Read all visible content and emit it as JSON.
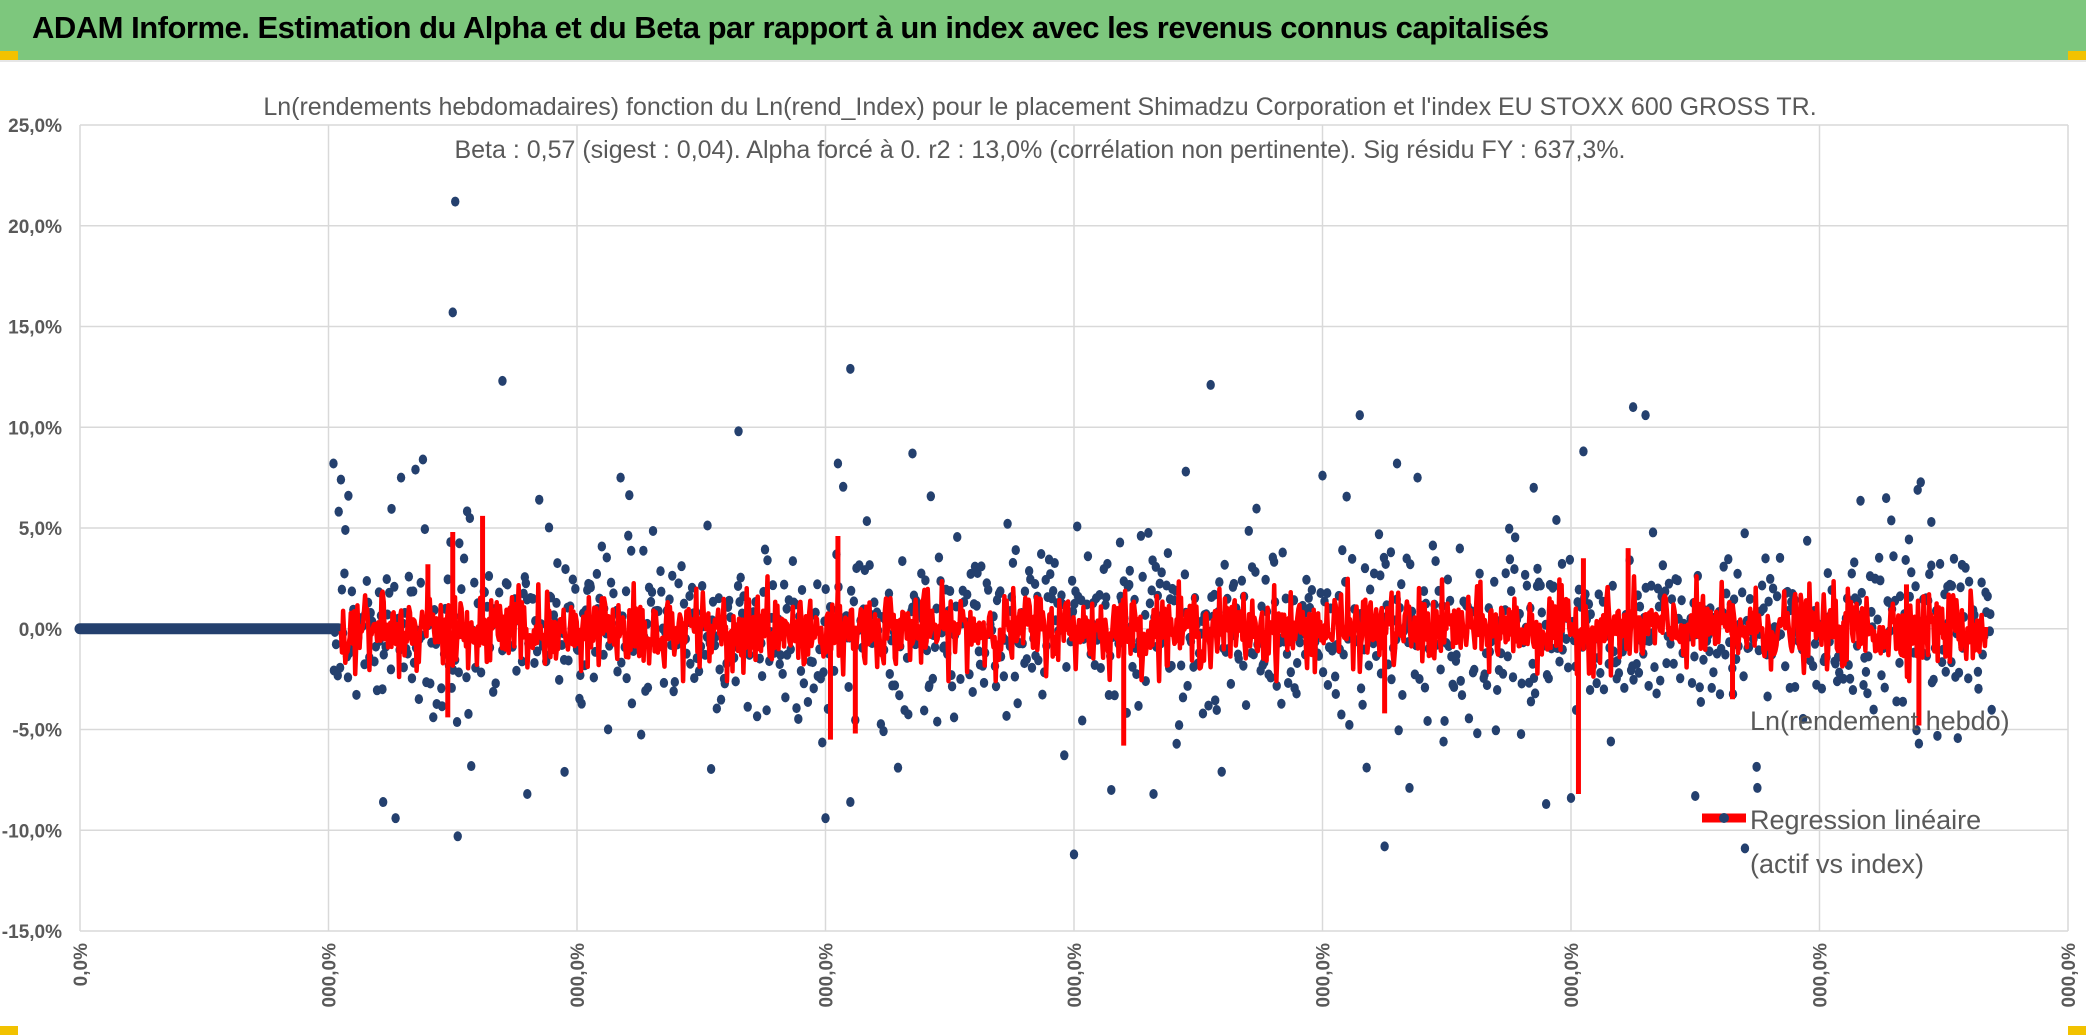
{
  "header": {
    "title": "ADAM Informe. Estimation du Alpha et du Beta par rapport à un index avec les revenus connus capitalisés",
    "accent_color": "#7dc77d",
    "corner_color": "#f2c200"
  },
  "chart_data": {
    "type": "scatter",
    "title": "Ln(rendements hebdomadaires) fonction du Ln(rend_Index) pour le placement Shimadzu Corporation et l'index EU STOXX 600 GROSS TR.",
    "subtitle": "Beta : 0,57 (sigest : 0,04). Alpha forcé à 0. r2 : 13,0% (corrélation non pertinente). Sig résidu FY : 637,3%.",
    "xlabel": "",
    "ylabel": "",
    "ylim": [
      -15,
      25
    ],
    "xlim": [
      0,
      8
    ],
    "y_ticks": [
      "25,0%",
      "20,0%",
      "15,0%",
      "10,0%",
      "5,0%",
      "0,0%",
      "-5,0%",
      "-10,0%",
      "-15,0%"
    ],
    "x_ticks": [
      "0,0%",
      "000,0%",
      "000,0%",
      "000,0%",
      "000,0%",
      "000,0%",
      "000,0%",
      "000,0%",
      "000,0%"
    ],
    "grid": true,
    "legend_placement": "right",
    "series": [
      {
        "name": "Ln(rendement hebdo)",
        "kind": "scatter",
        "color": "#24406e",
        "x_range": [
          0,
          7.7
        ],
        "notable_points": [
          {
            "x": 1.02,
            "y": 8.2
          },
          {
            "x": 1.05,
            "y": 7.4
          },
          {
            "x": 1.08,
            "y": 6.6
          },
          {
            "x": 1.35,
            "y": 7.9
          },
          {
            "x": 1.38,
            "y": 8.4
          },
          {
            "x": 1.51,
            "y": 21.2
          },
          {
            "x": 1.5,
            "y": 15.7
          },
          {
            "x": 1.7,
            "y": 12.3
          },
          {
            "x": 1.52,
            "y": -10.3
          },
          {
            "x": 1.27,
            "y": -9.4
          },
          {
            "x": 1.22,
            "y": -8.6
          },
          {
            "x": 1.8,
            "y": -8.2
          },
          {
            "x": 1.95,
            "y": -7.1
          },
          {
            "x": 2.65,
            "y": 9.8
          },
          {
            "x": 3.1,
            "y": 12.9
          },
          {
            "x": 3.05,
            "y": 8.2
          },
          {
            "x": 3.0,
            "y": -9.4
          },
          {
            "x": 3.1,
            "y": -8.6
          },
          {
            "x": 3.35,
            "y": 8.7
          },
          {
            "x": 4.0,
            "y": -11.2
          },
          {
            "x": 4.15,
            "y": -8.0
          },
          {
            "x": 4.32,
            "y": -8.2
          },
          {
            "x": 4.45,
            "y": 7.8
          },
          {
            "x": 4.55,
            "y": 12.1
          },
          {
            "x": 5.0,
            "y": 7.6
          },
          {
            "x": 5.15,
            "y": 10.6
          },
          {
            "x": 5.25,
            "y": -10.8
          },
          {
            "x": 5.3,
            "y": 8.2
          },
          {
            "x": 5.35,
            "y": -7.9
          },
          {
            "x": 5.85,
            "y": 7.0
          },
          {
            "x": 6.05,
            "y": 8.8
          },
          {
            "x": 6.0,
            "y": -8.4
          },
          {
            "x": 6.25,
            "y": 11.0
          },
          {
            "x": 6.3,
            "y": 10.6
          },
          {
            "x": 5.9,
            "y": -8.7
          },
          {
            "x": 6.5,
            "y": -8.3
          },
          {
            "x": 6.7,
            "y": -10.9
          },
          {
            "x": 6.75,
            "y": -7.9
          },
          {
            "x": 7.45,
            "y": 5.3
          },
          {
            "x": 7.4,
            "y": -5.7
          }
        ]
      },
      {
        "name": "Regression linéaire (actif vs index)",
        "kind": "line",
        "color": "#ff0000",
        "beta": 0.57,
        "peaks": [
          {
            "x": 1.4,
            "y": 3.2
          },
          {
            "x": 1.5,
            "y": 4.8
          },
          {
            "x": 1.62,
            "y": 5.6
          },
          {
            "x": 1.48,
            "y": -4.4
          },
          {
            "x": 3.05,
            "y": 4.6
          },
          {
            "x": 3.02,
            "y": -5.5
          },
          {
            "x": 3.12,
            "y": -5.2
          },
          {
            "x": 4.2,
            "y": -5.8
          },
          {
            "x": 5.25,
            "y": -4.2
          },
          {
            "x": 6.05,
            "y": 3.5
          },
          {
            "x": 6.03,
            "y": -8.2
          },
          {
            "x": 6.23,
            "y": 4.0
          },
          {
            "x": 6.65,
            "y": -3.5
          },
          {
            "x": 7.4,
            "y": -4.8
          },
          {
            "x": 7.35,
            "y": 2.2
          }
        ]
      }
    ],
    "legend": [
      {
        "label": "Ln(rendement hebdo)"
      },
      {
        "label_line1": "Regression linéaire",
        "label_line2": "(actif vs index)"
      }
    ]
  }
}
